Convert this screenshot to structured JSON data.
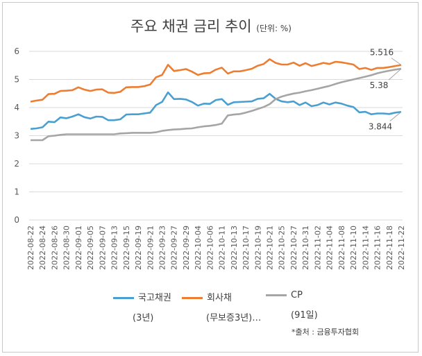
{
  "chart_data": {
    "type": "line",
    "title": "주요 채권 금리 추이",
    "title_unit": "(단위: %)",
    "source": "*출처 : 금융투자협회",
    "ylim": [
      0,
      6
    ],
    "yticks": [
      "0",
      "1",
      "2",
      "3",
      "4",
      "5",
      "6"
    ],
    "grid": true,
    "legend_position": "bottom",
    "x": [
      "2022-08-22",
      "2022-08-23",
      "2022-08-24",
      "2022-08-25",
      "2022-08-26",
      "2022-08-29",
      "2022-08-30",
      "2022-08-31",
      "2022-09-01",
      "2022-09-02",
      "2022-09-05",
      "2022-09-06",
      "2022-09-07",
      "2022-09-08",
      "2022-09-13",
      "2022-09-14",
      "2022-09-15",
      "2022-09-16",
      "2022-09-19",
      "2022-09-20",
      "2022-09-21",
      "2022-09-22",
      "2022-09-23",
      "2022-09-26",
      "2022-09-27",
      "2022-09-28",
      "2022-09-29",
      "2022-09-30",
      "2022-10-04",
      "2022-10-05",
      "2022-10-06",
      "2022-10-07",
      "2022-10-11",
      "2022-10-12",
      "2022-10-13",
      "2022-10-14",
      "2022-10-17",
      "2022-10-18",
      "2022-10-19",
      "2022-10-20",
      "2022-10-21",
      "2022-10-24",
      "2022-10-25",
      "2022-10-26",
      "2022-10-27",
      "2022-10-28",
      "2022-10-31",
      "2022-11-01",
      "2022-11-02",
      "2022-11-03",
      "2022-11-04",
      "2022-11-07",
      "2022-11-08",
      "2022-11-09",
      "2022-11-10",
      "2022-11-11",
      "2022-11-14",
      "2022-11-15",
      "2022-11-16",
      "2022-11-17",
      "2022-11-18",
      "2022-11-21",
      "2022-11-22"
    ],
    "xtick_labels": [
      "2022-08-22",
      "2022-08-24",
      "2022-08-26",
      "2022-08-30",
      "2022-09-01",
      "2022-09-05",
      "2022-09-07",
      "2022-09-13",
      "2022-09-15",
      "2022-09-19",
      "2022-09-21",
      "2022-09-23",
      "2022-09-27",
      "2022-09-29",
      "2022-10-04",
      "2022-10-06",
      "2022-10-11",
      "2022-10-13",
      "2022-10-17",
      "2022-10-19",
      "2022-10-21",
      "2022-10-25",
      "2022-10-27",
      "2022-10-31",
      "2022-11-02",
      "2022-11-04",
      "2022-11-08",
      "2022-11-10",
      "2022-11-14",
      "2022-11-16",
      "2022-11-18",
      "2022-11-22"
    ],
    "series": [
      {
        "name": "국고채권",
        "name_sub": "(3년)",
        "color": "#4a9fd1",
        "end_label": "3.844",
        "values": [
          3.24,
          3.26,
          3.3,
          3.5,
          3.48,
          3.65,
          3.62,
          3.68,
          3.76,
          3.66,
          3.61,
          3.68,
          3.67,
          3.55,
          3.55,
          3.58,
          3.75,
          3.76,
          3.76,
          3.79,
          3.82,
          4.09,
          4.2,
          4.54,
          4.3,
          4.31,
          4.29,
          4.2,
          4.07,
          4.14,
          4.13,
          4.27,
          4.3,
          4.1,
          4.19,
          4.2,
          4.21,
          4.22,
          4.31,
          4.33,
          4.49,
          4.31,
          4.22,
          4.19,
          4.22,
          4.09,
          4.18,
          4.05,
          4.09,
          4.18,
          4.11,
          4.18,
          4.14,
          4.07,
          4.02,
          3.83,
          3.85,
          3.76,
          3.79,
          3.79,
          3.77,
          3.82,
          3.844
        ]
      },
      {
        "name": "회사채",
        "name_sub": "(무보증3년)…",
        "color": "#ed7d31",
        "end_label": "5.516",
        "values": [
          4.21,
          4.25,
          4.28,
          4.48,
          4.49,
          4.59,
          4.6,
          4.62,
          4.72,
          4.64,
          4.59,
          4.64,
          4.65,
          4.53,
          4.52,
          4.56,
          4.72,
          4.73,
          4.73,
          4.76,
          4.82,
          5.08,
          5.16,
          5.52,
          5.3,
          5.33,
          5.37,
          5.28,
          5.16,
          5.22,
          5.23,
          5.35,
          5.42,
          5.21,
          5.29,
          5.29,
          5.33,
          5.38,
          5.49,
          5.55,
          5.72,
          5.59,
          5.53,
          5.53,
          5.6,
          5.49,
          5.58,
          5.48,
          5.53,
          5.59,
          5.55,
          5.63,
          5.61,
          5.57,
          5.53,
          5.37,
          5.41,
          5.34,
          5.41,
          5.41,
          5.44,
          5.48,
          5.516
        ]
      },
      {
        "name": "CP",
        "name_sub": "(91일)",
        "color": "#a5a5a5",
        "end_label": "5.38",
        "values": [
          2.84,
          2.84,
          2.84,
          2.98,
          3.0,
          3.03,
          3.05,
          3.05,
          3.05,
          3.05,
          3.05,
          3.05,
          3.05,
          3.05,
          3.05,
          3.08,
          3.09,
          3.1,
          3.1,
          3.1,
          3.1,
          3.12,
          3.17,
          3.2,
          3.22,
          3.23,
          3.25,
          3.26,
          3.3,
          3.33,
          3.35,
          3.38,
          3.43,
          3.72,
          3.75,
          3.77,
          3.82,
          3.88,
          3.95,
          4.02,
          4.12,
          4.3,
          4.39,
          4.45,
          4.5,
          4.53,
          4.58,
          4.62,
          4.67,
          4.72,
          4.77,
          4.84,
          4.9,
          4.95,
          5.0,
          5.05,
          5.1,
          5.15,
          5.22,
          5.27,
          5.31,
          5.35,
          5.38
        ]
      }
    ]
  }
}
